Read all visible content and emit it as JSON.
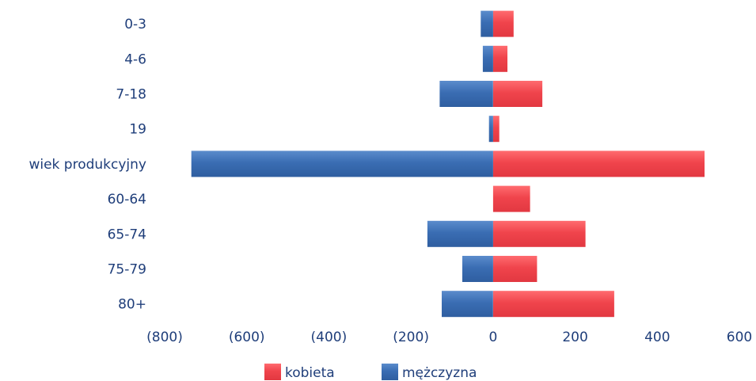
{
  "chart_data": {
    "type": "bar",
    "orientation": "horizontal",
    "stacked": "diverging",
    "title": "",
    "xlabel": "",
    "ylabel": "",
    "categories": [
      "0-3",
      "4-6",
      "7-18",
      "19",
      "wiek produkcyjny",
      "60-64",
      "65-74",
      "75-79",
      "80+"
    ],
    "series": [
      {
        "name": "kobieta",
        "color": "#f0444c",
        "values": [
          50,
          35,
          120,
          15,
          515,
          90,
          225,
          107,
          295
        ]
      },
      {
        "name": "mężczyzna",
        "color": "#3a6db3",
        "values": [
          -30,
          -25,
          -130,
          -10,
          -735,
          0,
          -160,
          -75,
          -125
        ]
      }
    ],
    "xlim": [
      -800,
      600
    ],
    "x_ticks": [
      -800,
      -600,
      -400,
      -200,
      0,
      200,
      400,
      600
    ],
    "x_tick_labels": [
      "(800)",
      "(600)",
      "(400)",
      "(200)",
      "0",
      "200",
      "400",
      "600"
    ],
    "grid": false,
    "legend": {
      "position": "bottom",
      "items": [
        "kobieta",
        "mężczyzna"
      ]
    }
  }
}
